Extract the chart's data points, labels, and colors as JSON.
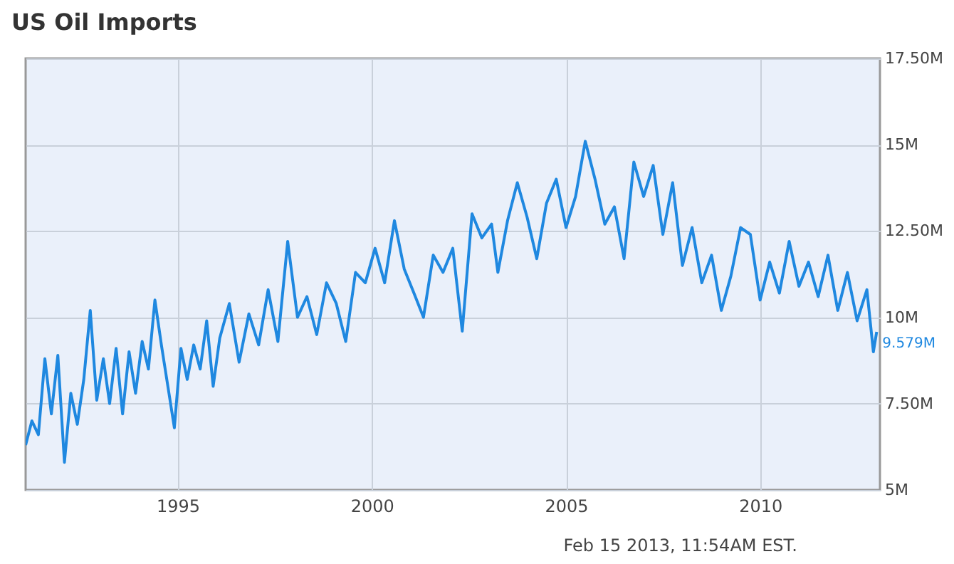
{
  "chart_data": {
    "type": "line",
    "title": "US Oil Imports",
    "annotations": [
      {
        "text": "9.579M",
        "x": "2013-01",
        "y": 9.579
      },
      "Feb 15 2013, 11:54AM EST."
    ],
    "x": [
      "1991-02",
      "1991-04",
      "1991-06",
      "1991-08",
      "1991-10",
      "1991-12",
      "1992-02",
      "1992-04",
      "1992-06",
      "1992-08",
      "1992-10",
      "1992-12",
      "1993-02",
      "1993-04",
      "1993-06",
      "1993-08",
      "1993-10",
      "1993-12",
      "1994-02",
      "1994-04",
      "1994-06",
      "1994-08",
      "1994-10",
      "1994-12",
      "1995-02",
      "1995-04",
      "1995-06",
      "1995-08",
      "1995-10",
      "1995-12",
      "1996-02",
      "1996-05",
      "1996-08",
      "1996-11",
      "1997-02",
      "1997-05",
      "1997-08",
      "1997-11",
      "1998-02",
      "1998-05",
      "1998-08",
      "1998-11",
      "1999-02",
      "1999-05",
      "1999-08",
      "1999-11",
      "2000-02",
      "2000-05",
      "2000-08",
      "2000-11",
      "2001-02",
      "2001-05",
      "2001-08",
      "2001-11",
      "2002-02",
      "2002-05",
      "2002-08",
      "2002-11",
      "2003-02",
      "2003-04",
      "2003-07",
      "2003-10",
      "2004-01",
      "2004-04",
      "2004-07",
      "2004-10",
      "2005-01",
      "2005-04",
      "2005-07",
      "2005-10",
      "2006-01",
      "2006-04",
      "2006-07",
      "2006-10",
      "2007-01",
      "2007-04",
      "2007-07",
      "2007-10",
      "2008-01",
      "2008-04",
      "2008-07",
      "2008-10",
      "2009-01",
      "2009-04",
      "2009-07",
      "2009-10",
      "2010-01",
      "2010-04",
      "2010-07",
      "2010-10",
      "2011-01",
      "2011-04",
      "2011-07",
      "2011-10",
      "2012-01",
      "2012-04",
      "2012-07",
      "2012-10",
      "2012-12",
      "2013-01"
    ],
    "series": [
      {
        "color": "#1f88e0",
        "values": [
          6.3,
          7.0,
          6.6,
          8.8,
          7.2,
          8.9,
          5.8,
          7.8,
          6.9,
          8.2,
          10.2,
          7.6,
          8.8,
          7.5,
          9.1,
          7.2,
          9.0,
          7.8,
          9.3,
          8.5,
          10.5,
          9.2,
          8.0,
          6.8,
          9.1,
          8.2,
          9.2,
          8.5,
          9.9,
          8.0,
          9.4,
          10.4,
          8.7,
          10.1,
          9.2,
          10.8,
          9.3,
          12.2,
          10.0,
          10.6,
          9.5,
          11.0,
          10.4,
          9.3,
          11.3,
          11.0,
          12.0,
          11.0,
          12.8,
          11.4,
          10.7,
          10.0,
          11.8,
          11.3,
          12.0,
          9.6,
          13.0,
          12.3,
          12.7,
          11.3,
          12.8,
          13.9,
          12.9,
          11.7,
          13.3,
          14.0,
          12.6,
          13.5,
          15.1,
          14.0,
          12.7,
          13.2,
          11.7,
          14.5,
          13.5,
          14.4,
          12.4,
          13.9,
          11.5,
          12.6,
          11.0,
          11.8,
          10.2,
          11.2,
          12.6,
          12.4,
          10.5,
          11.6,
          10.7,
          12.2,
          10.9,
          11.6,
          10.6,
          11.8,
          10.2,
          11.3,
          9.9,
          10.8,
          9.0,
          9.579
        ]
      }
    ],
    "xlim": [
      "1991-02",
      "2013-02"
    ],
    "xticks": [
      "1995",
      "2000",
      "2005",
      "2010"
    ],
    "ylim": [
      5,
      17.5
    ],
    "yticks": [
      {
        "value": 5,
        "label": "5M"
      },
      {
        "value": 7.5,
        "label": "7.50M"
      },
      {
        "value": 10,
        "label": "10M"
      },
      {
        "value": 12.5,
        "label": "12.50M"
      },
      {
        "value": 15,
        "label": "15M"
      },
      {
        "value": 17.5,
        "label": "17.50M"
      }
    ],
    "grid": true
  }
}
